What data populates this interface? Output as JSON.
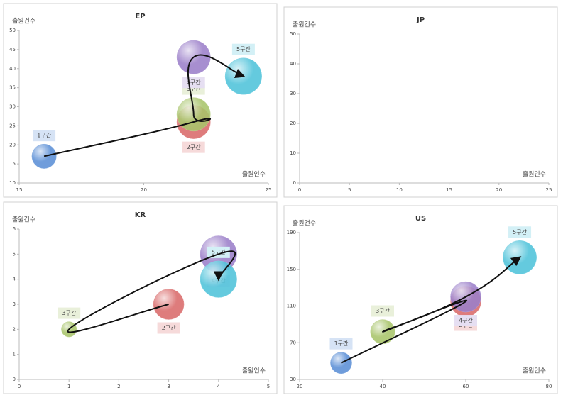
{
  "chart_data": [
    {
      "type": "bubble",
      "title": "EP",
      "xlabel": "출원인수",
      "ylabel": "출원건수",
      "xlim": [
        15,
        25
      ],
      "xticks": [
        15,
        20,
        25
      ],
      "ylim": [
        10,
        50
      ],
      "yticks": [
        10,
        15,
        20,
        25,
        30,
        35,
        40,
        45,
        50
      ],
      "series": [
        {
          "name": "1구간",
          "color": "#5b8fd6",
          "x": [
            16
          ],
          "values": [
            17
          ],
          "sizes": [
            4
          ]
        },
        {
          "name": "2구간",
          "color": "#d96a6a",
          "x": [
            22
          ],
          "values": [
            26
          ],
          "sizes": [
            5.5
          ]
        },
        {
          "name": "3구간",
          "color": "#a8c46a",
          "x": [
            22
          ],
          "values": [
            28
          ],
          "sizes": [
            5.5
          ]
        },
        {
          "name": "4구간",
          "color": "#9b7fc9",
          "x": [
            22
          ],
          "values": [
            43
          ],
          "sizes": [
            5.5
          ]
        },
        {
          "name": "5구간",
          "color": "#4fc3da",
          "x": [
            24
          ],
          "values": [
            38
          ],
          "sizes": [
            6
          ]
        }
      ]
    },
    {
      "type": "bubble",
      "title": "JP",
      "xlabel": "출원인수",
      "ylabel": "출원건수",
      "xlim": [
        0,
        25
      ],
      "xticks": [
        0,
        5,
        10,
        15,
        20,
        25
      ],
      "ylim": [
        0,
        50
      ],
      "yticks": [
        0,
        10,
        20,
        30,
        40,
        50
      ],
      "series": []
    },
    {
      "type": "bubble",
      "title": "KR",
      "xlabel": "출원인수",
      "ylabel": "출원건수",
      "xlim": [
        0,
        5
      ],
      "xticks": [
        0,
        1,
        2,
        3,
        4,
        5
      ],
      "ylim": [
        0,
        6
      ],
      "yticks": [
        0,
        1,
        2,
        3,
        4,
        5,
        6
      ],
      "series": [
        {
          "name": "2구간",
          "color": "#d96a6a",
          "x": [
            3
          ],
          "values": [
            3
          ],
          "sizes": [
            5
          ]
        },
        {
          "name": "3구간",
          "color": "#a8c46a",
          "x": [
            1
          ],
          "values": [
            2
          ],
          "sizes": [
            2.5
          ]
        },
        {
          "name": "4구간",
          "color": "#9b7fc9",
          "x": [
            4
          ],
          "values": [
            5
          ],
          "sizes": [
            6
          ]
        },
        {
          "name": "5구간",
          "color": "#4fc3da",
          "x": [
            4
          ],
          "values": [
            4
          ],
          "sizes": [
            6
          ]
        }
      ]
    },
    {
      "type": "bubble",
      "title": "US",
      "xlabel": "출원인수",
      "ylabel": "출원건수",
      "xlim": [
        20,
        80
      ],
      "xticks": [
        20,
        40,
        60,
        80
      ],
      "ylim": [
        30,
        190
      ],
      "yticks": [
        30,
        70,
        110,
        150,
        190
      ],
      "series": [
        {
          "name": "1구간",
          "color": "#5b8fd6",
          "x": [
            30
          ],
          "values": [
            48
          ],
          "sizes": [
            3.5
          ]
        },
        {
          "name": "2구간",
          "color": "#d96a6a",
          "x": [
            60
          ],
          "values": [
            115
          ],
          "sizes": [
            5
          ]
        },
        {
          "name": "3구간",
          "color": "#a8c46a",
          "x": [
            40
          ],
          "values": [
            82
          ],
          "sizes": [
            4
          ]
        },
        {
          "name": "4구간",
          "color": "#9b7fc9",
          "x": [
            60
          ],
          "values": [
            120
          ],
          "sizes": [
            5
          ]
        },
        {
          "name": "5구간",
          "color": "#4fc3da",
          "x": [
            73
          ],
          "values": [
            163
          ],
          "sizes": [
            5.5
          ]
        }
      ]
    }
  ]
}
